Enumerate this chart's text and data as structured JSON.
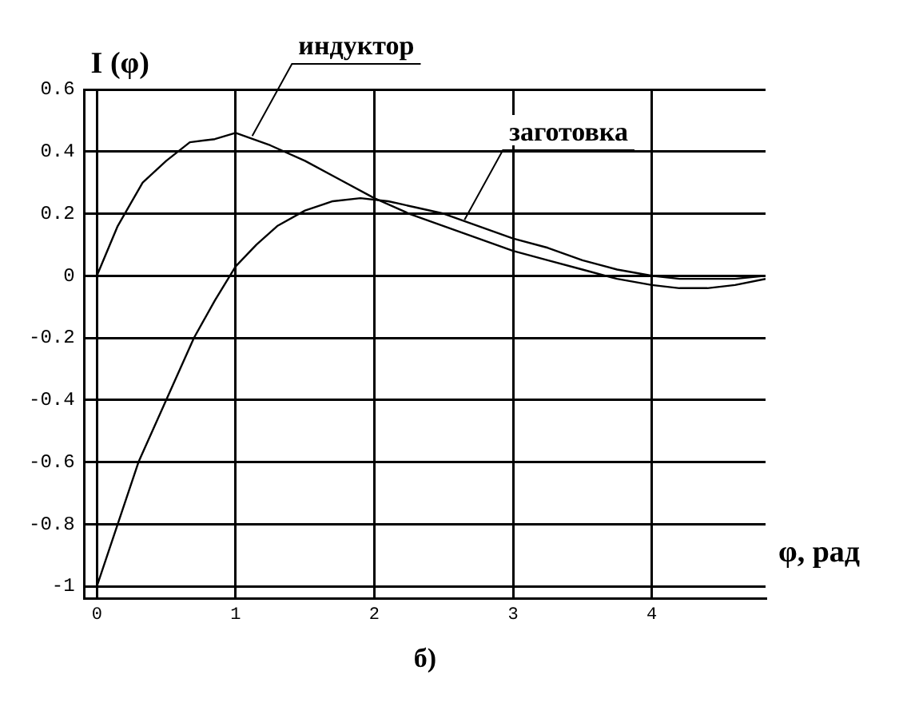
{
  "chart_data": {
    "type": "line",
    "xlabel": "φ, рад",
    "ylabel": "I (φ)",
    "xlim": [
      -0.09,
      4.82
    ],
    "ylim": [
      -1.04,
      0.6
    ],
    "xticks": [
      0,
      1,
      2,
      3,
      4
    ],
    "yticks": [
      -1,
      -0.8,
      -0.6,
      -0.4,
      -0.2,
      0,
      0.2,
      0.4,
      0.6
    ],
    "grid": true,
    "legend": false,
    "marker": "none",
    "line_style": "solid",
    "series": [
      {
        "color": "#000000",
        "x": [
          0,
          0.15,
          0.33,
          0.5,
          0.67,
          0.85,
          1,
          1.25,
          1.5,
          1.75,
          2,
          2.25,
          2.5,
          2.75,
          3,
          3.25,
          3.5,
          3.75,
          4,
          4.2,
          4.4,
          4.6,
          4.82
        ],
        "values": [
          0,
          0.16,
          0.3,
          0.37,
          0.43,
          0.44,
          0.46,
          0.42,
          0.37,
          0.31,
          0.25,
          0.2,
          0.16,
          0.12,
          0.08,
          0.05,
          0.02,
          -0.01,
          -0.03,
          -0.04,
          -0.04,
          -0.03,
          -0.01
        ]
      },
      {
        "color": "#000000",
        "x": [
          0,
          0.15,
          0.3,
          0.5,
          0.7,
          0.85,
          1,
          1.15,
          1.3,
          1.5,
          1.7,
          1.9,
          2.1,
          2.3,
          2.5,
          2.75,
          3,
          3.25,
          3.5,
          3.75,
          4,
          4.2,
          4.4,
          4.6,
          4.82
        ],
        "values": [
          -1,
          -0.8,
          -0.6,
          -0.4,
          -0.2,
          -0.08,
          0.03,
          0.1,
          0.16,
          0.21,
          0.24,
          0.25,
          0.24,
          0.22,
          0.2,
          0.16,
          0.12,
          0.09,
          0.05,
          0.02,
          0,
          -0.01,
          -0.01,
          -0.01,
          0
        ]
      }
    ],
    "annotations": [
      {
        "text": "индуктор",
        "x": 1.12,
        "y": 0.45
      },
      {
        "text": "заготовка",
        "x": 2.65,
        "y": 0.18
      },
      "б)"
    ]
  }
}
